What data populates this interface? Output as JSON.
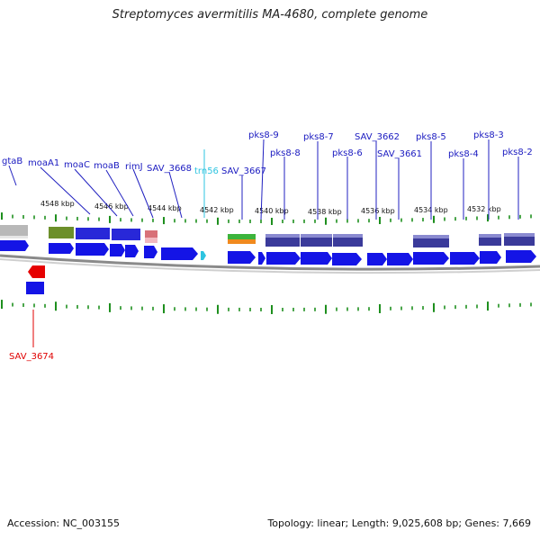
{
  "header": {
    "title": "Streptomyces avermitilis MA-4680, complete genome"
  },
  "footer": {
    "accession": "Accession: NC_003155",
    "summary": "Topology: linear; Length: 9,025,608 bp; Genes: 7,669"
  },
  "colors": {
    "gene_forward": "#1414e6",
    "gene_highlight": "#e60000",
    "trna": "#2ec4e0",
    "tick": "#1e8f1e",
    "backbone": "#8c8c8c",
    "protein_domain": "#5a5ab0"
  },
  "scale_labels": [
    "4548 kbp",
    "4546 kbp",
    "4544 kbp",
    "4542 kbp",
    "4540 kbp",
    "4538 kbp",
    "4536 kbp",
    "4534 kbp",
    "4532 kbp"
  ],
  "genes": [
    {
      "label": "gtaB",
      "type": "gene"
    },
    {
      "label": "moaA1",
      "type": "gene"
    },
    {
      "label": "moaC",
      "type": "gene"
    },
    {
      "label": "moaB",
      "type": "gene"
    },
    {
      "label": "rimJ",
      "type": "gene"
    },
    {
      "label": "SAV_3668",
      "type": "gene"
    },
    {
      "label": "trn56",
      "type": "trna"
    },
    {
      "label": "SAV_3667",
      "type": "gene"
    },
    {
      "label": "pks8-9",
      "type": "gene"
    },
    {
      "label": "pks8-8",
      "type": "gene"
    },
    {
      "label": "pks8-7",
      "type": "gene"
    },
    {
      "label": "pks8-6",
      "type": "gene"
    },
    {
      "label": "SAV_3662",
      "type": "gene"
    },
    {
      "label": "SAV_3661",
      "type": "gene"
    },
    {
      "label": "pks8-5",
      "type": "gene"
    },
    {
      "label": "pks8-4",
      "type": "gene"
    },
    {
      "label": "pks8-3",
      "type": "gene"
    },
    {
      "label": "pks8-2",
      "type": "gene"
    },
    {
      "label": "SAV_3674",
      "type": "highlight"
    }
  ]
}
